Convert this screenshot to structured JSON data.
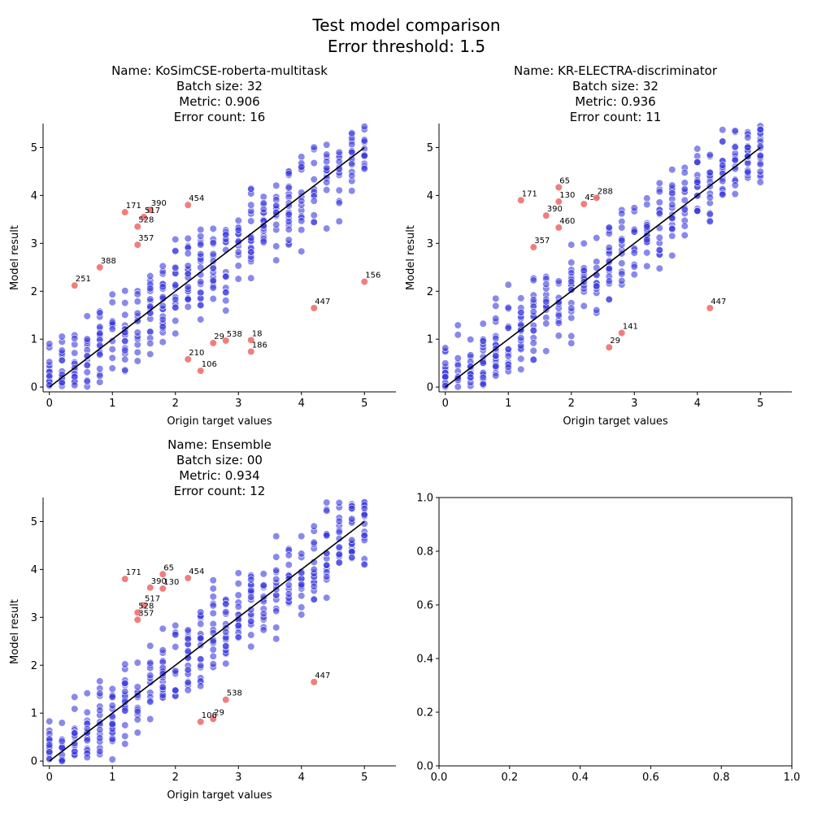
{
  "figure": {
    "title_line1": "Test model comparison",
    "title_line2": "Error threshold: 1.5"
  },
  "colors": {
    "normal_point": "#3b3bdf",
    "error_point": "#f07070",
    "identity_line": "#000000"
  },
  "chart_data": [
    {
      "type": "scatter",
      "title_lines": [
        "Name: KoSimCSE-roberta-multitask",
        "Batch size: 32",
        "Metric: 0.906",
        "Error count: 16"
      ],
      "xlabel": "Origin target values",
      "ylabel": "Model result",
      "xlim": [
        -0.1,
        5.5
      ],
      "ylim": [
        -0.1,
        5.5
      ],
      "xticks": [
        "0",
        "1",
        "2",
        "3",
        "4",
        "5"
      ],
      "yticks": [
        "0",
        "1",
        "2",
        "3",
        "4",
        "5"
      ],
      "reference_line": [
        [
          0,
          0
        ],
        [
          5,
          5
        ]
      ],
      "error_points": [
        {
          "label": "171",
          "x": 1.2,
          "y": 3.65
        },
        {
          "label": "390",
          "x": 1.6,
          "y": 3.7
        },
        {
          "label": "517",
          "x": 1.5,
          "y": 3.55
        },
        {
          "label": "528",
          "x": 1.4,
          "y": 3.35
        },
        {
          "label": "454",
          "x": 2.2,
          "y": 3.8
        },
        {
          "label": "357",
          "x": 1.4,
          "y": 2.97
        },
        {
          "label": "388",
          "x": 0.8,
          "y": 2.5
        },
        {
          "label": "251",
          "x": 0.4,
          "y": 2.12
        },
        {
          "label": "156",
          "x": 5.0,
          "y": 2.2
        },
        {
          "label": "447",
          "x": 4.2,
          "y": 1.65
        },
        {
          "label": "29",
          "x": 2.6,
          "y": 0.92
        },
        {
          "label": "538",
          "x": 2.8,
          "y": 0.97
        },
        {
          "label": "18",
          "x": 3.2,
          "y": 0.98
        },
        {
          "label": "186",
          "x": 3.2,
          "y": 0.74
        },
        {
          "label": "210",
          "x": 2.2,
          "y": 0.58
        },
        {
          "label": "106",
          "x": 2.4,
          "y": 0.34
        }
      ]
    },
    {
      "type": "scatter",
      "title_lines": [
        "Name: KR-ELECTRA-discriminator",
        "Batch size: 32",
        "Metric: 0.936",
        "Error count: 11"
      ],
      "xlabel": "Origin target values",
      "ylabel": "Model result",
      "xlim": [
        -0.1,
        5.5
      ],
      "ylim": [
        -0.1,
        5.5
      ],
      "xticks": [
        "0",
        "1",
        "2",
        "3",
        "4",
        "5"
      ],
      "yticks": [
        "0",
        "1",
        "2",
        "3",
        "4",
        "5"
      ],
      "reference_line": [
        [
          0,
          0
        ],
        [
          5,
          5
        ]
      ],
      "error_points": [
        {
          "label": "171",
          "x": 1.2,
          "y": 3.9
        },
        {
          "label": "65",
          "x": 1.8,
          "y": 4.17
        },
        {
          "label": "130",
          "x": 1.8,
          "y": 3.87
        },
        {
          "label": "454",
          "x": 2.2,
          "y": 3.82
        },
        {
          "label": "288",
          "x": 2.4,
          "y": 3.95
        },
        {
          "label": "390",
          "x": 1.6,
          "y": 3.58
        },
        {
          "label": "460",
          "x": 1.8,
          "y": 3.33
        },
        {
          "label": "357",
          "x": 1.4,
          "y": 2.92
        },
        {
          "label": "447",
          "x": 4.2,
          "y": 1.65
        },
        {
          "label": "141",
          "x": 2.8,
          "y": 1.13
        },
        {
          "label": "29",
          "x": 2.6,
          "y": 0.83
        }
      ]
    },
    {
      "type": "scatter",
      "title_lines": [
        "Name: Ensemble",
        "Batch size: 00",
        "Metric: 0.934",
        "Error count: 12"
      ],
      "xlabel": "Origin target values",
      "ylabel": "Model result",
      "xlim": [
        -0.1,
        5.5
      ],
      "ylim": [
        -0.1,
        5.5
      ],
      "xticks": [
        "0",
        "1",
        "2",
        "3",
        "4",
        "5"
      ],
      "yticks": [
        "0",
        "1",
        "2",
        "3",
        "4",
        "5"
      ],
      "reference_line": [
        [
          0,
          0
        ],
        [
          5,
          5
        ]
      ],
      "error_points": [
        {
          "label": "171",
          "x": 1.2,
          "y": 3.8
        },
        {
          "label": "65",
          "x": 1.8,
          "y": 3.9
        },
        {
          "label": "454",
          "x": 2.2,
          "y": 3.82
        },
        {
          "label": "390",
          "x": 1.6,
          "y": 3.62
        },
        {
          "label": "130",
          "x": 1.8,
          "y": 3.6
        },
        {
          "label": "517",
          "x": 1.5,
          "y": 3.25
        },
        {
          "label": "528",
          "x": 1.4,
          "y": 3.1
        },
        {
          "label": "357",
          "x": 1.4,
          "y": 2.95
        },
        {
          "label": "447",
          "x": 4.2,
          "y": 1.65
        },
        {
          "label": "538",
          "x": 2.8,
          "y": 1.28
        },
        {
          "label": "29",
          "x": 2.6,
          "y": 0.88
        },
        {
          "label": "106",
          "x": 2.4,
          "y": 0.82
        }
      ]
    },
    {
      "type": "scatter",
      "empty": true,
      "xlim": [
        0,
        1
      ],
      "ylim": [
        0,
        1
      ],
      "xticks": [
        "0.0",
        "0.2",
        "0.4",
        "0.6",
        "0.8",
        "1.0"
      ],
      "yticks": [
        "0.0",
        "0.2",
        "0.4",
        "0.6",
        "0.8",
        "1.0"
      ]
    }
  ]
}
